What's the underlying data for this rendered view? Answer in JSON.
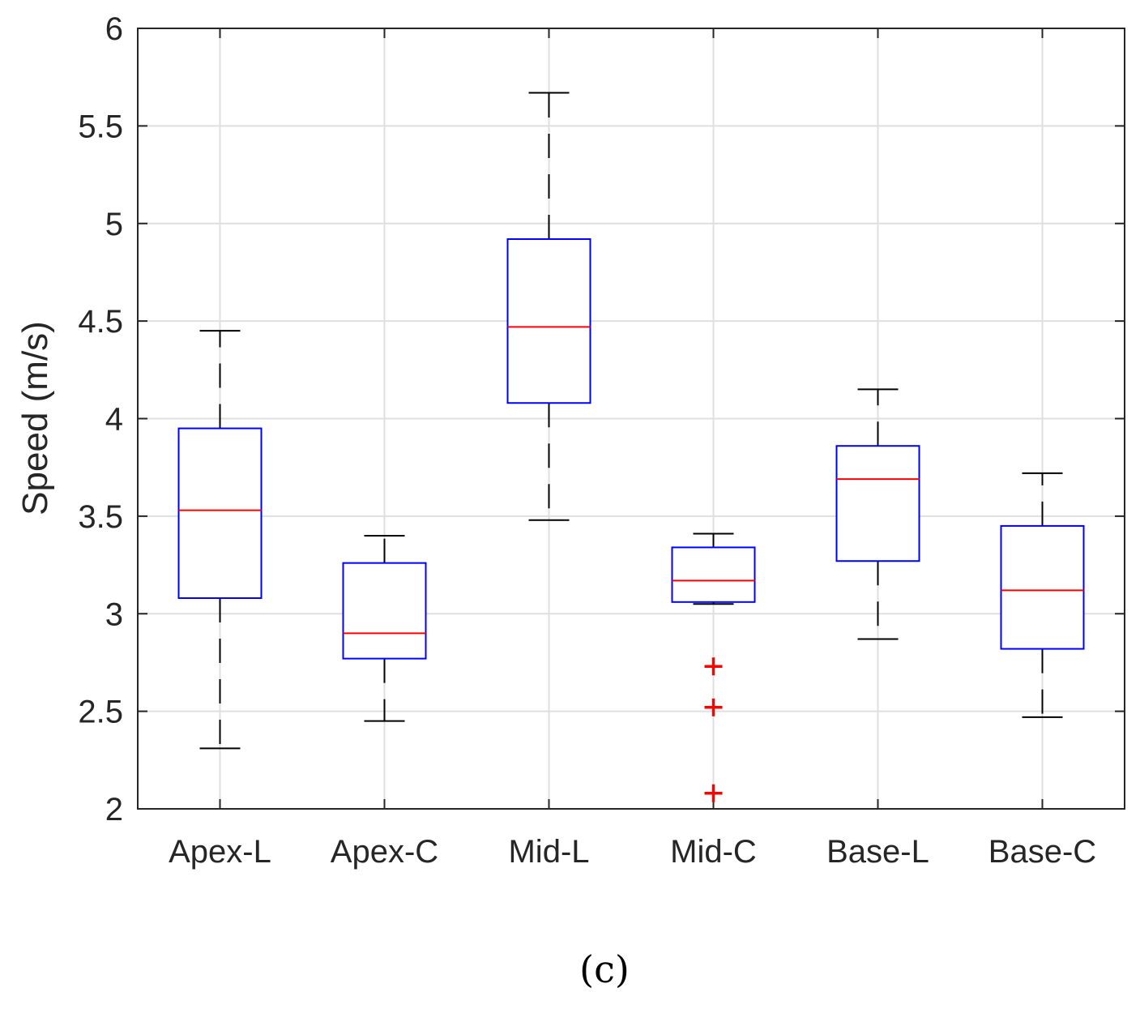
{
  "chart_data": {
    "type": "boxplot",
    "title": "",
    "xlabel": "",
    "ylabel": "Speed (m/s)",
    "ylim": [
      2,
      6
    ],
    "yticks": [
      "2",
      "2.5",
      "3",
      "3.5",
      "4",
      "4.5",
      "5",
      "5.5",
      "6"
    ],
    "ytick_values": [
      2,
      2.5,
      3,
      3.5,
      4,
      4.5,
      5,
      5.5,
      6
    ],
    "grid": true,
    "categories": [
      "Apex-L",
      "Apex-C",
      "Mid-L",
      "Mid-C",
      "Base-L",
      "Base-C"
    ],
    "boxes": [
      {
        "name": "Apex-L",
        "whisker_low": 2.31,
        "q1": 3.08,
        "median": 3.53,
        "q3": 3.95,
        "whisker_high": 4.45,
        "outliers": []
      },
      {
        "name": "Apex-C",
        "whisker_low": 2.45,
        "q1": 2.77,
        "median": 2.9,
        "q3": 3.26,
        "whisker_high": 3.4,
        "outliers": []
      },
      {
        "name": "Mid-L",
        "whisker_low": 3.48,
        "q1": 4.08,
        "median": 4.47,
        "q3": 4.92,
        "whisker_high": 5.67,
        "outliers": []
      },
      {
        "name": "Mid-C",
        "whisker_low": 3.05,
        "q1": 3.06,
        "median": 3.17,
        "q3": 3.34,
        "whisker_high": 3.41,
        "outliers": [
          2.73,
          2.52,
          2.08
        ]
      },
      {
        "name": "Base-L",
        "whisker_low": 2.87,
        "q1": 3.27,
        "median": 3.69,
        "q3": 3.86,
        "whisker_high": 4.15,
        "outliers": []
      },
      {
        "name": "Base-C",
        "whisker_low": 2.47,
        "q1": 2.82,
        "median": 3.12,
        "q3": 3.45,
        "whisker_high": 3.72,
        "outliers": []
      }
    ],
    "colors": {
      "box": "#0000ff",
      "median": "#ff0000",
      "whisker": "#000000",
      "outlier": "#ff0000",
      "grid": "#dfdfdf",
      "axis": "#262626"
    }
  },
  "caption": "(c)"
}
